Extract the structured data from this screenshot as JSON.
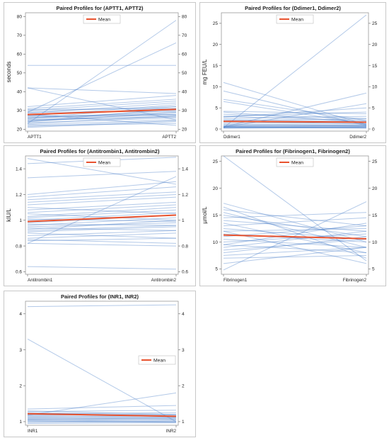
{
  "chart_data": [
    {
      "type": "line",
      "title": "Paired Profiles for (APTT1, APTT2)",
      "categories": [
        "APTT1",
        "APTT2"
      ],
      "ylabel": "seconds",
      "ylim": [
        19,
        82
      ],
      "yticks": [
        20,
        30,
        40,
        50,
        60,
        70,
        80
      ],
      "legend": {
        "label": "Mean",
        "placement": "top-center"
      },
      "mean": [
        27.8,
        30.6
      ],
      "subjects": [
        [
          22.5,
          25
        ],
        [
          23,
          27
        ],
        [
          23.5,
          26
        ],
        [
          24,
          29
        ],
        [
          24,
          31
        ],
        [
          24.5,
          27
        ],
        [
          25,
          28
        ],
        [
          25,
          26.5
        ],
        [
          25.5,
          30
        ],
        [
          26,
          29
        ],
        [
          26,
          32
        ],
        [
          26.5,
          27.5
        ],
        [
          27,
          33
        ],
        [
          27,
          28
        ],
        [
          27.5,
          31
        ],
        [
          28,
          30.5
        ],
        [
          28.5,
          34
        ],
        [
          29,
          29.5
        ],
        [
          29.5,
          32
        ],
        [
          30,
          35
        ],
        [
          30.5,
          31
        ],
        [
          31,
          36
        ],
        [
          32,
          38
        ],
        [
          21,
          24
        ],
        [
          21.5,
          24.5
        ],
        [
          22,
          23
        ],
        [
          54,
          54
        ],
        [
          42,
          25
        ],
        [
          42,
          39
        ],
        [
          23,
          78
        ],
        [
          29,
          66
        ],
        [
          28,
          22
        ]
      ]
    },
    {
      "type": "line",
      "title": "Paired Profiles for (Ddimer1, Ddimer2)",
      "categories": [
        "Ddimer1",
        "Ddimer2"
      ],
      "ylabel": "mg FEU/L",
      "ylim": [
        -0.5,
        27.5
      ],
      "yticks": [
        0,
        5,
        10,
        15,
        20,
        25
      ],
      "legend": {
        "label": "Mean",
        "placement": "top-center"
      },
      "mean": [
        1.8,
        1.6
      ],
      "subjects": [
        [
          0.2,
          0.3
        ],
        [
          0.3,
          0.2
        ],
        [
          0.4,
          0.5
        ],
        [
          0.5,
          0.4
        ],
        [
          0.6,
          0.8
        ],
        [
          0.3,
          0.6
        ],
        [
          0.5,
          0.3
        ],
        [
          0.7,
          0.5
        ],
        [
          0.8,
          1.0
        ],
        [
          1.0,
          0.7
        ],
        [
          1.2,
          0.9
        ],
        [
          1.5,
          1.3
        ],
        [
          1.8,
          1.2
        ],
        [
          2.0,
          2.4
        ],
        [
          2.2,
          1.8
        ],
        [
          2.5,
          3.0
        ],
        [
          3.0,
          2.0
        ],
        [
          3.5,
          2.5
        ],
        [
          3.0,
          4.0
        ],
        [
          4.0,
          1.5
        ],
        [
          4.2,
          3.6
        ],
        [
          2.8,
          5.0
        ],
        [
          6.5,
          1.2
        ],
        [
          7.0,
          2.0
        ],
        [
          11.0,
          1.0
        ],
        [
          9.0,
          0.8
        ],
        [
          0.5,
          8.5
        ],
        [
          0.4,
          6.0
        ],
        [
          0.3,
          27
        ]
      ]
    },
    {
      "type": "line",
      "title": "Paired Profiles for (Antitrombin1, Antitrombin2)",
      "categories": [
        "Antitrombin1",
        "Antitrombin2"
      ],
      "ylabel": "kIU/L",
      "ylim": [
        0.58,
        1.5
      ],
      "yticks": [
        0.6,
        0.8,
        1.0,
        1.2,
        1.4
      ],
      "legend": {
        "label": "Mean",
        "placement": "top-center"
      },
      "mean": [
        0.99,
        1.04
      ],
      "subjects": [
        [
          0.64,
          0.62
        ],
        [
          0.82,
          0.8
        ],
        [
          0.84,
          0.86
        ],
        [
          0.85,
          0.82
        ],
        [
          0.86,
          0.9
        ],
        [
          0.88,
          0.92
        ],
        [
          0.9,
          0.86
        ],
        [
          0.91,
          0.95
        ],
        [
          0.92,
          0.96
        ],
        [
          0.93,
          1.0
        ],
        [
          0.94,
          0.92
        ],
        [
          0.95,
          0.98
        ],
        [
          0.96,
          1.02
        ],
        [
          0.97,
          0.96
        ],
        [
          0.98,
          1.04
        ],
        [
          1.0,
          1.06
        ],
        [
          1.01,
          0.99
        ],
        [
          1.02,
          1.08
        ],
        [
          1.03,
          1.1
        ],
        [
          1.05,
          1.0
        ],
        [
          1.06,
          1.12
        ],
        [
          1.08,
          1.14
        ],
        [
          1.1,
          1.05
        ],
        [
          1.12,
          1.18
        ],
        [
          1.14,
          1.2
        ],
        [
          1.16,
          1.22
        ],
        [
          1.18,
          1.26
        ],
        [
          1.2,
          1.3
        ],
        [
          1.33,
          1.38
        ],
        [
          0.82,
          1.34
        ],
        [
          1.48,
          1.28
        ],
        [
          1.44,
          1.49
        ]
      ]
    },
    {
      "type": "line",
      "title": "Paired Profiles for (Fibrinogen1, Fibrinogen2)",
      "categories": [
        "Fibrinogen1",
        "Fibrinogen2"
      ],
      "ylabel": "µmol/L",
      "ylim": [
        4,
        26
      ],
      "yticks": [
        5,
        10,
        15,
        20,
        25
      ],
      "legend": {
        "label": "Mean",
        "placement": "top-center"
      },
      "mean": [
        11.3,
        10.6
      ],
      "subjects": [
        [
          4.8,
          17.5
        ],
        [
          6.0,
          9.0
        ],
        [
          7.0,
          7.5
        ],
        [
          7.5,
          9.0
        ],
        [
          8.0,
          11.0
        ],
        [
          8.5,
          10.5
        ],
        [
          9.0,
          12.0
        ],
        [
          9.5,
          8.0
        ],
        [
          10.0,
          11.5
        ],
        [
          10.5,
          9.0
        ],
        [
          11.0,
          13.0
        ],
        [
          11.5,
          10.0
        ],
        [
          12.0,
          12.5
        ],
        [
          12.5,
          10.5
        ],
        [
          13.0,
          14.5
        ],
        [
          13.5,
          8.0
        ],
        [
          14.0,
          12.0
        ],
        [
          14.5,
          15.5
        ],
        [
          15.0,
          11.0
        ],
        [
          15.5,
          9.0
        ],
        [
          16.0,
          13.0
        ],
        [
          16.5,
          7.0
        ],
        [
          17.2,
          10.0
        ],
        [
          26.0,
          6.5
        ],
        [
          12.0,
          6.0
        ],
        [
          9.5,
          13.5
        ]
      ]
    },
    {
      "type": "line",
      "title": "Paired Profiles for (INR1, INR2)",
      "categories": [
        "INR1",
        "INR2"
      ],
      "ylabel": "",
      "ylim": [
        0.9,
        4.35
      ],
      "yticks": [
        1,
        2,
        3,
        4
      ],
      "legend": {
        "label": "Mean",
        "placement": "right"
      },
      "mean": [
        1.22,
        1.15
      ],
      "subjects": [
        [
          0.95,
          0.97
        ],
        [
          0.98,
          1.0
        ],
        [
          1.0,
          1.02
        ],
        [
          1.02,
          0.98
        ],
        [
          1.04,
          1.06
        ],
        [
          1.05,
          1.0
        ],
        [
          1.07,
          1.1
        ],
        [
          1.08,
          1.05
        ],
        [
          1.1,
          1.12
        ],
        [
          1.12,
          1.08
        ],
        [
          1.14,
          1.16
        ],
        [
          1.16,
          1.12
        ],
        [
          1.18,
          1.2
        ],
        [
          1.2,
          1.15
        ],
        [
          1.22,
          1.25
        ],
        [
          1.25,
          1.18
        ],
        [
          1.28,
          1.32
        ],
        [
          1.3,
          1.2
        ],
        [
          1.35,
          1.45
        ],
        [
          1.18,
          1.8
        ],
        [
          3.3,
          1.0
        ],
        [
          4.2,
          4.25
        ]
      ]
    }
  ]
}
